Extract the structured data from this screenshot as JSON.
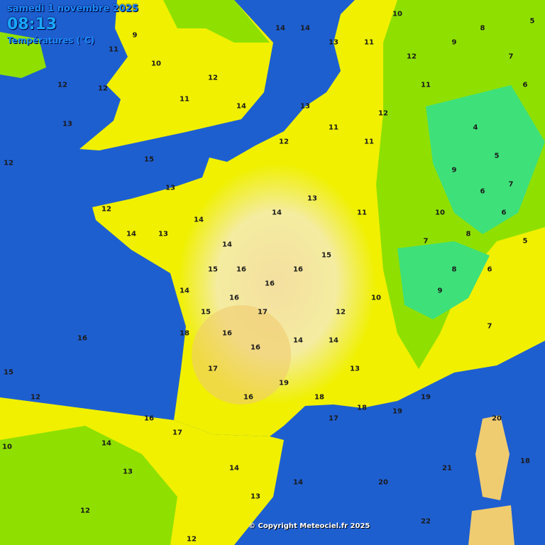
{
  "header": {
    "date": "samedi 1 novembre 2025",
    "time": "08:13",
    "title": "Températures (°C)"
  },
  "copyright": "© Copyright Meteociel.fr 2025",
  "colors": {
    "sea": "#1e5fd0",
    "temp_4_8": "#3ee07a",
    "temp_8_11": "#8fe000",
    "temp_11_14": "#f0f000",
    "temp_14_16": "#f4eca0",
    "temp_16_18": "#f0cc70"
  },
  "readings": [
    "12",
    "13",
    "11",
    "12",
    "10",
    "9",
    "11",
    "12",
    "14",
    "14",
    "14",
    "13",
    "12",
    "15",
    "13",
    "12",
    "14",
    "13",
    "14",
    "14",
    "15",
    "16",
    "14",
    "15",
    "16",
    "17",
    "16",
    "16",
    "15",
    "13",
    "14",
    "18",
    "16",
    "16",
    "17",
    "16",
    "19",
    "18",
    "17",
    "18",
    "19",
    "19",
    "20",
    "18",
    "21",
    "22",
    "20",
    "10",
    "11",
    "12",
    "11",
    "9",
    "8",
    "7",
    "6",
    "4",
    "5",
    "7",
    "6",
    "9",
    "10",
    "8",
    "7",
    "8",
    "9",
    "6",
    "5",
    "6",
    "5",
    "7",
    "11",
    "12",
    "11",
    "10",
    "12",
    "14",
    "13",
    "14",
    "12",
    "11",
    "13",
    "16",
    "15",
    "12",
    "10",
    "14",
    "13",
    "12",
    "12",
    "16",
    "17",
    "14",
    "13",
    "14"
  ]
}
